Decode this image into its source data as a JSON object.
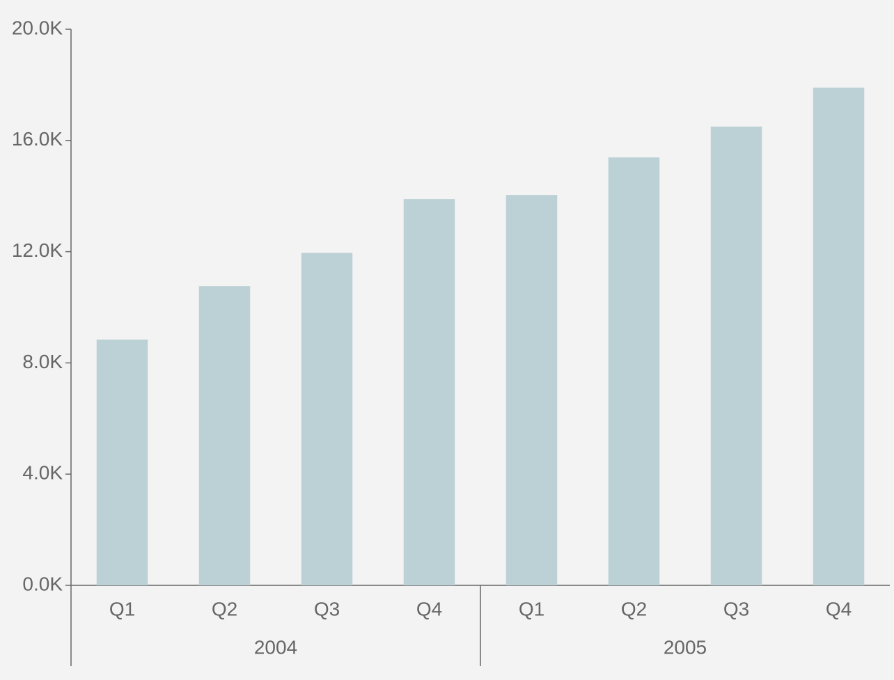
{
  "chart_data": {
    "type": "bar",
    "categories": [
      "Q1",
      "Q2",
      "Q3",
      "Q4",
      "Q1",
      "Q2",
      "Q3",
      "Q4"
    ],
    "x_groups": [
      "2004",
      "2005"
    ],
    "values": [
      8840,
      10760,
      11960,
      13890,
      14040,
      15390,
      16500,
      17900
    ],
    "color": "#bcd1d6",
    "ylim": [
      0,
      20000
    ],
    "yticks": [
      {
        "value": 0,
        "label": "0.0K"
      },
      {
        "value": 4000,
        "label": "4.0K"
      },
      {
        "value": 8000,
        "label": "8.0K"
      },
      {
        "value": 12000,
        "label": "12.0K"
      },
      {
        "value": 16000,
        "label": "16.0K"
      },
      {
        "value": 20000,
        "label": "20.0K"
      }
    ],
    "grid": false
  }
}
